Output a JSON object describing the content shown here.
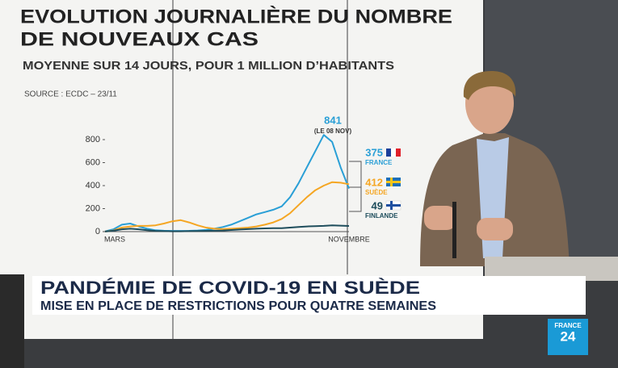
{
  "chart_data": {
    "type": "line",
    "title": [
      "EVOLUTION JOURNALIÈRE DU NOMBRE",
      "DE NOUVEAUX CAS"
    ],
    "subtitle": "MOYENNE SUR 14 JOURS, POUR 1 MILLION D’HABITANTS",
    "source": "SOURCE : ECDC – 23/11",
    "peak_annotation": "(LE 08 NOV)",
    "categories": [
      "MARS",
      null,
      null,
      null,
      null,
      null,
      null,
      null,
      null,
      null,
      null,
      null,
      null,
      null,
      null,
      null,
      null,
      null,
      null,
      null,
      null,
      null,
      null,
      null,
      null,
      null,
      null,
      null,
      null,
      "NOVEMBRE"
    ],
    "series": [
      {
        "name": "FRANCE",
        "color": "#2a9fd6",
        "values": [
          2,
          20,
          60,
          70,
          45,
          25,
          12,
          8,
          6,
          6,
          7,
          10,
          15,
          25,
          40,
          60,
          90,
          120,
          150,
          170,
          190,
          220,
          300,
          420,
          560,
          700,
          841,
          780,
          560,
          375
        ]
      },
      {
        "name": "SUÈDE",
        "color": "#f5a623",
        "values": [
          1,
          10,
          35,
          45,
          50,
          50,
          55,
          70,
          90,
          100,
          80,
          55,
          35,
          25,
          22,
          25,
          30,
          35,
          45,
          60,
          80,
          110,
          160,
          230,
          300,
          360,
          400,
          430,
          425,
          412
        ]
      },
      {
        "name": "FINLANDE",
        "color": "#1e4d5c",
        "values": [
          1,
          8,
          20,
          25,
          20,
          12,
          6,
          4,
          3,
          3,
          4,
          5,
          6,
          8,
          10,
          14,
          18,
          22,
          25,
          28,
          30,
          30,
          35,
          40,
          45,
          48,
          50,
          55,
          52,
          49
        ]
      }
    ],
    "ylim": [
      0,
      800
    ],
    "yticks": [
      0,
      200,
      400,
      600,
      800
    ],
    "grid": false
  },
  "banner": {
    "headline": "PANDÉMIE DE COVID-19 EN SUÈDE",
    "subheadline": "MISE EN PLACE DE RESTRICTIONS POUR QUATRE SEMAINES"
  },
  "logo": {
    "line1": "FRANCE",
    "line2": "24"
  }
}
